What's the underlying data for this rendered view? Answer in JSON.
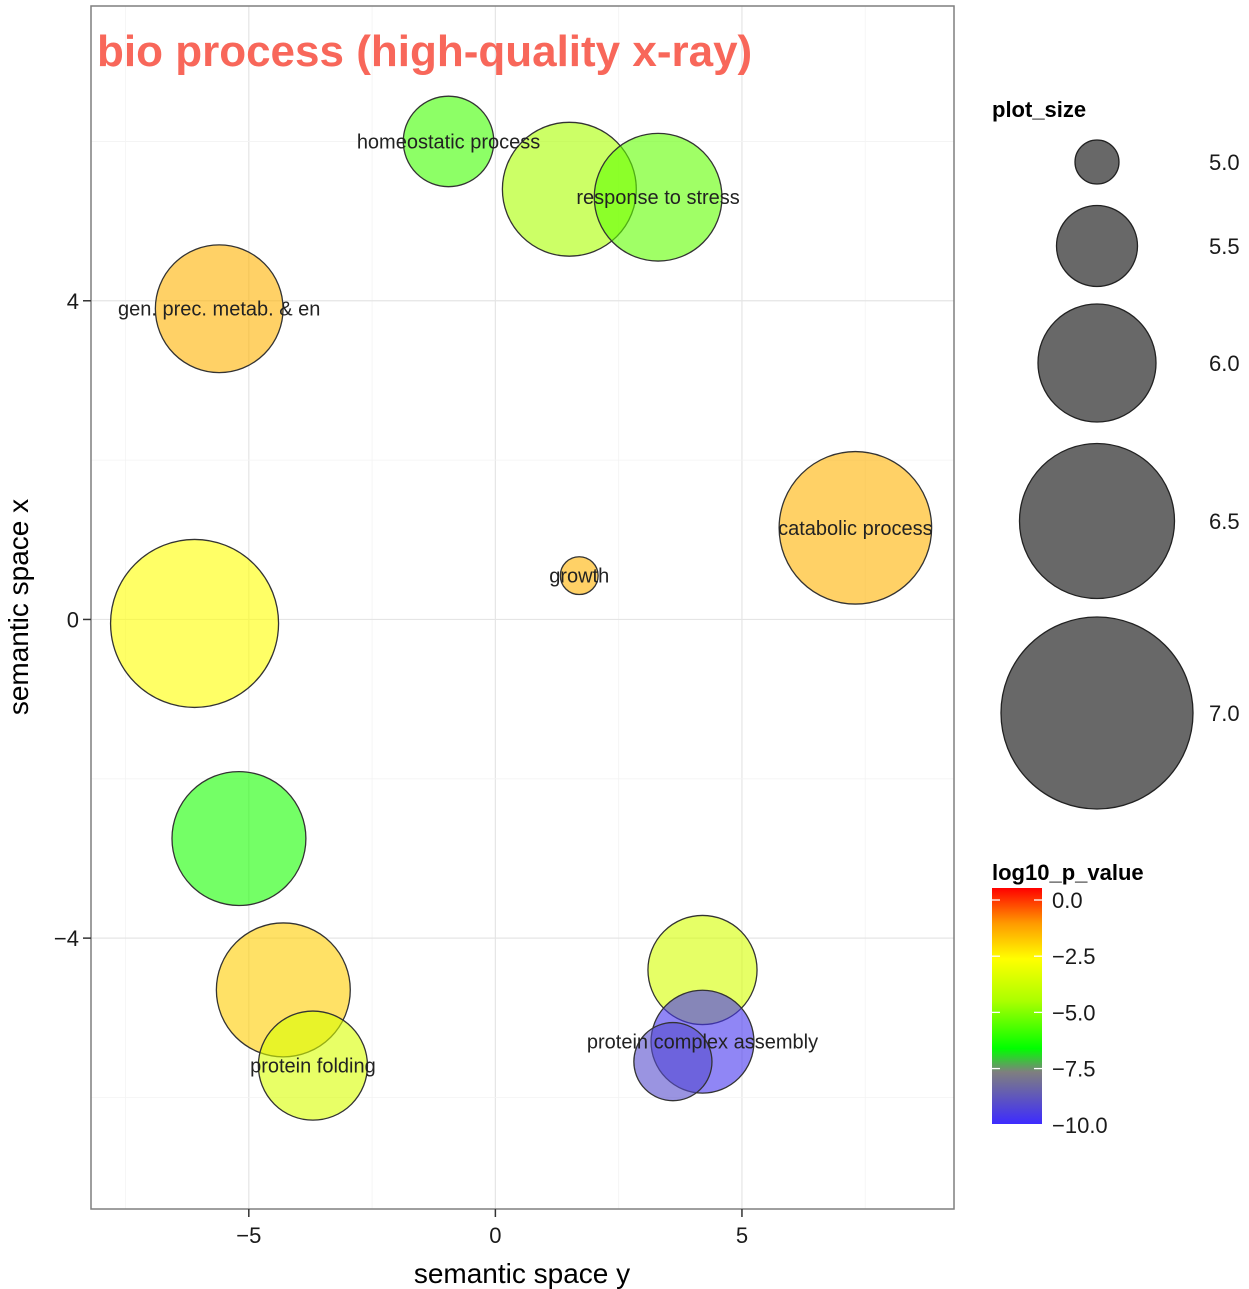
{
  "chart_data": {
    "type": "scatter",
    "title": "bio process (high-quality x-ray)",
    "title_color": "#f8675a",
    "xlabel": "semantic space y",
    "ylabel": "semantic space x",
    "xlim": [
      -8.2,
      9.3
    ],
    "ylim": [
      -7.4,
      7.7
    ],
    "x_ticks": [
      -5,
      0,
      5
    ],
    "x_tick_labels": [
      "−5",
      "0",
      "5"
    ],
    "y_ticks": [
      4,
      0,
      -4
    ],
    "y_tick_labels": [
      "4",
      "0",
      "−4"
    ],
    "grid": true,
    "points": [
      {
        "x": -0.95,
        "y": 6.0,
        "size": 5.75,
        "log10_p_value": -6.3,
        "label": "homeostatic process"
      },
      {
        "x": 1.5,
        "y": 5.4,
        "size": 6.45,
        "log10_p_value": -5.0,
        "label": ""
      },
      {
        "x": 3.3,
        "y": 5.3,
        "size": 6.35,
        "log10_p_value": -5.9,
        "label": "response to stress"
      },
      {
        "x": -5.6,
        "y": 3.9,
        "size": 6.35,
        "log10_p_value": -2.0,
        "label": "gen. prec. metab. & en"
      },
      {
        "x": 7.3,
        "y": 1.15,
        "size": 6.75,
        "log10_p_value": -2.0,
        "label": "catabolic process"
      },
      {
        "x": 1.7,
        "y": 0.55,
        "size": 4.9,
        "log10_p_value": -2.0,
        "label": "growth"
      },
      {
        "x": -6.1,
        "y": -0.05,
        "size": 7.0,
        "log10_p_value": -3.2,
        "label": ""
      },
      {
        "x": -5.2,
        "y": -2.75,
        "size": 6.45,
        "log10_p_value": -6.8,
        "label": ""
      },
      {
        "x": -4.3,
        "y": -4.65,
        "size": 6.45,
        "log10_p_value": -2.4,
        "label": ""
      },
      {
        "x": -3.7,
        "y": -5.6,
        "size": 6.05,
        "log10_p_value": -4.0,
        "label": "protein folding"
      },
      {
        "x": 4.2,
        "y": -4.4,
        "size": 6.05,
        "log10_p_value": -4.1,
        "label": ""
      },
      {
        "x": 4.2,
        "y": -5.3,
        "size": 5.95,
        "log10_p_value": -10.2,
        "label": "protein complex assembly"
      },
      {
        "x": 3.6,
        "y": -5.55,
        "size": 5.55,
        "log10_p_value": -9.6,
        "label": ""
      }
    ],
    "size_legend": {
      "title": "plot_size",
      "entries": [
        {
          "value": 5.0,
          "label": "5.0"
        },
        {
          "value": 5.5,
          "label": "5.5"
        },
        {
          "value": 6.0,
          "label": "6.0"
        },
        {
          "value": 6.5,
          "label": "6.5"
        },
        {
          "value": 7.0,
          "label": "7.0"
        }
      ]
    },
    "color_legend": {
      "title": "log10_p_value",
      "range": [
        -10.5,
        0.0
      ],
      "ticks": [
        {
          "value": 0.0,
          "label": "0.0"
        },
        {
          "value": -2.5,
          "label": "−2.5"
        },
        {
          "value": -5.0,
          "label": "−5.0"
        },
        {
          "value": -7.5,
          "label": "−7.5"
        },
        {
          "value": -10.0,
          "label": "−10.0"
        }
      ],
      "colors": {
        "high": "#ff0000",
        "mid_high": "#ffff00",
        "mid_low": "#00ff00",
        "low": "#3d2bff"
      }
    }
  }
}
